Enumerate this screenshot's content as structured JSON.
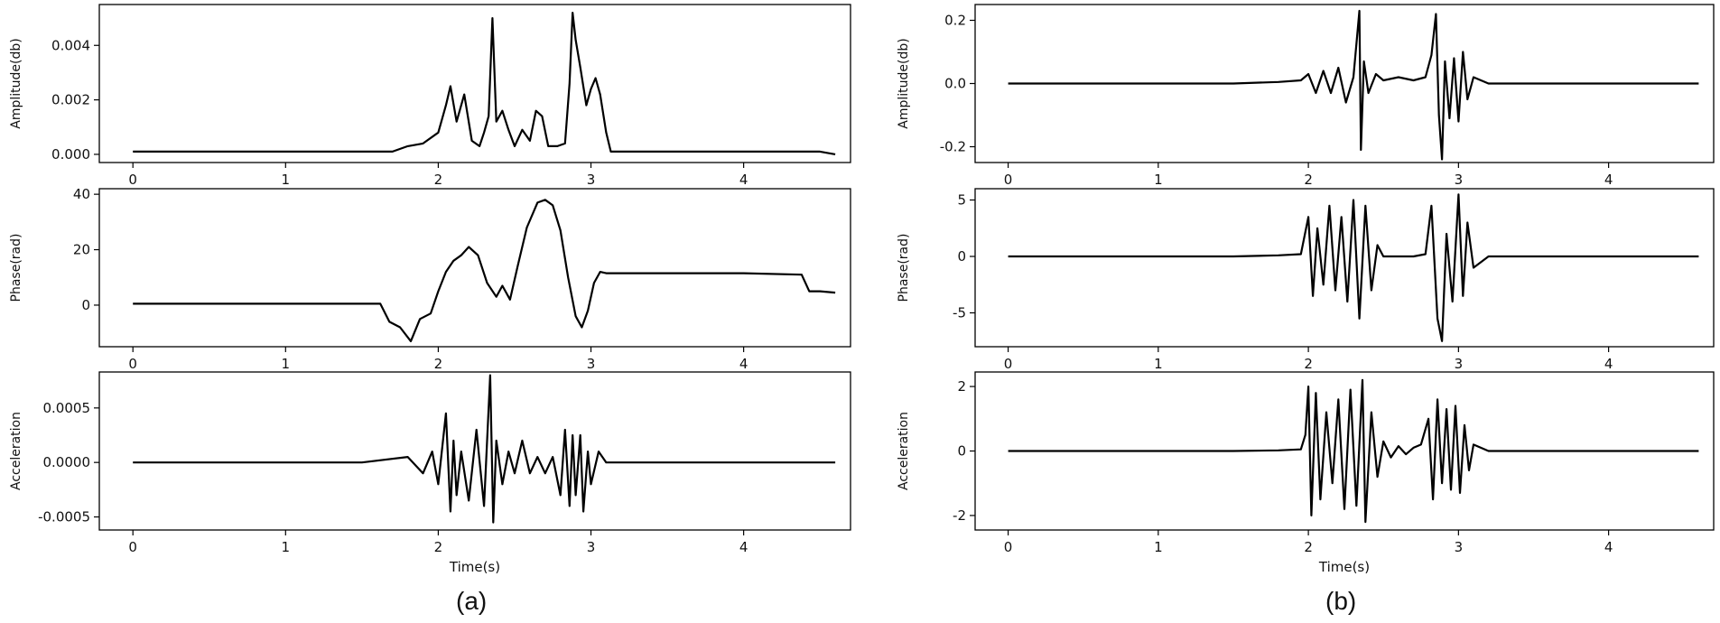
{
  "captions": {
    "a": "(a)",
    "b": "(b)"
  },
  "colors": {
    "line": "#000000",
    "axis": "#000000",
    "background": "#ffffff"
  },
  "chart_data": [
    {
      "type": "line",
      "panel": "a",
      "row": 0,
      "xlabel": "",
      "ylabel": "Amplitude(db)",
      "xlim": [
        -0.22,
        4.7
      ],
      "ylim": [
        -0.0003,
        0.0055
      ],
      "xticks": [
        "0",
        "1",
        "2",
        "3",
        "4"
      ],
      "yticks": [
        "0.000",
        "0.002",
        "0.004"
      ],
      "ytick_values": [
        0,
        0.002,
        0.004
      ],
      "series": [
        {
          "x": [
            0,
            0.5,
            1.0,
            1.5,
            1.7,
            1.8,
            1.9,
            2.0,
            2.05,
            2.08,
            2.12,
            2.17,
            2.22,
            2.27,
            2.3,
            2.33,
            2.355,
            2.38,
            2.42,
            2.46,
            2.5,
            2.55,
            2.6,
            2.64,
            2.68,
            2.72,
            2.78,
            2.83,
            2.86,
            2.88,
            2.9,
            2.93,
            2.97,
            3.0,
            3.03,
            3.06,
            3.1,
            3.13,
            3.5,
            4.0,
            4.5,
            4.6
          ],
          "y": [
            0.0001,
            0.0001,
            0.0001,
            0.0001,
            0.0001,
            0.0003,
            0.0004,
            0.0008,
            0.0018,
            0.0025,
            0.0012,
            0.0022,
            0.0005,
            0.0003,
            0.0008,
            0.0014,
            0.005,
            0.0012,
            0.0016,
            0.0009,
            0.0003,
            0.0009,
            0.0005,
            0.0016,
            0.0014,
            0.0003,
            0.0003,
            0.0004,
            0.0026,
            0.0052,
            0.0042,
            0.0032,
            0.0018,
            0.0024,
            0.0028,
            0.0022,
            0.0008,
            0.0001,
            0.0001,
            0.0001,
            0.0001,
            0.0
          ]
        }
      ]
    },
    {
      "type": "line",
      "panel": "a",
      "row": 1,
      "xlabel": "",
      "ylabel": "Phase(rad)",
      "xlim": [
        -0.22,
        4.7
      ],
      "ylim": [
        -15,
        42
      ],
      "xticks": [
        "0",
        "1",
        "2",
        "3",
        "4"
      ],
      "yticks": [
        "0",
        "20",
        "40"
      ],
      "ytick_values": [
        0,
        20,
        40
      ],
      "series": [
        {
          "x": [
            0,
            0.5,
            1.0,
            1.5,
            1.62,
            1.68,
            1.75,
            1.82,
            1.88,
            1.95,
            2.0,
            2.05,
            2.1,
            2.15,
            2.2,
            2.26,
            2.32,
            2.38,
            2.42,
            2.47,
            2.52,
            2.58,
            2.65,
            2.7,
            2.75,
            2.8,
            2.85,
            2.9,
            2.94,
            2.98,
            3.02,
            3.06,
            3.1,
            3.5,
            4.0,
            4.38,
            4.43,
            4.5,
            4.6
          ],
          "y": [
            0.5,
            0.5,
            0.5,
            0.5,
            0.5,
            -6,
            -8,
            -13,
            -5,
            -3,
            5,
            12,
            16,
            18,
            21,
            18,
            8,
            3,
            7,
            2,
            14,
            28,
            37,
            38,
            36,
            27,
            10,
            -4,
            -8,
            -2,
            8,
            12,
            11.5,
            11.5,
            11.5,
            11,
            5,
            5,
            4.5
          ]
        }
      ]
    },
    {
      "type": "line",
      "panel": "a",
      "row": 2,
      "xlabel": "Time(s)",
      "ylabel": "Acceleration",
      "xlim": [
        -0.22,
        4.7
      ],
      "ylim": [
        -0.00062,
        0.00083
      ],
      "xticks": [
        "0",
        "1",
        "2",
        "3",
        "4"
      ],
      "yticks": [
        "0.0005",
        "0.0000",
        "-0.0005"
      ],
      "ytick_values": [
        0.0005,
        0,
        -0.0005
      ],
      "series": [
        {
          "x": [
            0,
            0.5,
            1.0,
            1.5,
            1.8,
            1.9,
            1.96,
            2.0,
            2.05,
            2.08,
            2.1,
            2.12,
            2.15,
            2.2,
            2.25,
            2.3,
            2.34,
            2.36,
            2.38,
            2.42,
            2.46,
            2.5,
            2.55,
            2.6,
            2.65,
            2.7,
            2.75,
            2.8,
            2.83,
            2.86,
            2.88,
            2.9,
            2.93,
            2.95,
            2.98,
            3.0,
            3.05,
            3.1,
            3.5,
            4.0,
            4.5,
            4.6
          ],
          "y": [
            0,
            0,
            0,
            0,
            5e-05,
            -0.0001,
            0.0001,
            -0.0002,
            0.00045,
            -0.00045,
            0.0002,
            -0.0003,
            0.0001,
            -0.00035,
            0.0003,
            -0.0004,
            0.0008,
            -0.00055,
            0.0002,
            -0.0002,
            0.0001,
            -0.0001,
            0.0002,
            -0.0001,
            5e-05,
            -0.0001,
            5e-05,
            -0.0003,
            0.0003,
            -0.0004,
            0.00025,
            -0.0003,
            0.00025,
            -0.00045,
            0.0001,
            -0.0002,
            0.0001,
            0,
            0,
            0,
            0,
            0
          ]
        }
      ]
    },
    {
      "type": "line",
      "panel": "b",
      "row": 0,
      "xlabel": "",
      "ylabel": "Amplitude(db)",
      "xlim": [
        -0.22,
        4.7
      ],
      "ylim": [
        -0.25,
        0.25
      ],
      "xticks": [
        "0",
        "1",
        "2",
        "3",
        "4"
      ],
      "yticks": [
        "0.2",
        "0.0",
        "-0.2"
      ],
      "ytick_values": [
        0.2,
        0,
        -0.2
      ],
      "series": [
        {
          "x": [
            0,
            0.5,
            1.0,
            1.5,
            1.8,
            1.95,
            2.0,
            2.05,
            2.1,
            2.15,
            2.2,
            2.25,
            2.3,
            2.34,
            2.35,
            2.37,
            2.4,
            2.45,
            2.5,
            2.6,
            2.7,
            2.78,
            2.82,
            2.85,
            2.87,
            2.89,
            2.91,
            2.94,
            2.97,
            3.0,
            3.03,
            3.06,
            3.1,
            3.2,
            3.5,
            4.0,
            4.5,
            4.6
          ],
          "y": [
            0,
            0,
            0,
            0,
            0.005,
            0.01,
            0.03,
            -0.03,
            0.04,
            -0.03,
            0.05,
            -0.06,
            0.02,
            0.23,
            -0.21,
            0.07,
            -0.03,
            0.03,
            0.01,
            0.02,
            0.01,
            0.02,
            0.09,
            0.22,
            -0.1,
            -0.24,
            0.07,
            -0.11,
            0.08,
            -0.12,
            0.1,
            -0.05,
            0.02,
            0,
            0,
            0,
            0,
            0
          ]
        }
      ]
    },
    {
      "type": "line",
      "panel": "b",
      "row": 1,
      "xlabel": "",
      "ylabel": "Phase(rad)",
      "xlim": [
        -0.22,
        4.7
      ],
      "ylim": [
        -8,
        6
      ],
      "xticks": [
        "0",
        "1",
        "2",
        "3",
        "4"
      ],
      "yticks": [
        "5",
        "0",
        "-5"
      ],
      "ytick_values": [
        5,
        0,
        -5
      ],
      "series": [
        {
          "x": [
            0,
            0.5,
            1.0,
            1.5,
            1.8,
            1.95,
            2.0,
            2.03,
            2.06,
            2.1,
            2.14,
            2.18,
            2.22,
            2.26,
            2.3,
            2.34,
            2.38,
            2.42,
            2.46,
            2.5,
            2.6,
            2.7,
            2.78,
            2.82,
            2.86,
            2.89,
            2.92,
            2.96,
            3.0,
            3.03,
            3.06,
            3.1,
            3.2,
            3.5,
            4.0,
            4.5,
            4.6
          ],
          "y": [
            0,
            0,
            0,
            0,
            0.1,
            0.2,
            3.5,
            -3.5,
            2.5,
            -2.5,
            4.5,
            -3,
            3.5,
            -4,
            5,
            -5.5,
            4.5,
            -3,
            1,
            0,
            0,
            0,
            0.2,
            4.5,
            -5.5,
            -7.5,
            2,
            -4,
            5.5,
            -3.5,
            3,
            -1,
            0,
            0,
            0,
            0,
            0
          ]
        }
      ]
    },
    {
      "type": "line",
      "panel": "b",
      "row": 2,
      "xlabel": "Time(s)",
      "ylabel": "Acceleration",
      "xlim": [
        -0.22,
        4.7
      ],
      "ylim": [
        -2.45,
        2.45
      ],
      "xticks": [
        "0",
        "1",
        "2",
        "3",
        "4"
      ],
      "yticks": [
        "2",
        "0",
        "-2"
      ],
      "ytick_values": [
        2,
        0,
        -2
      ],
      "series": [
        {
          "x": [
            0,
            0.5,
            1.0,
            1.5,
            1.8,
            1.95,
            1.98,
            2.0,
            2.02,
            2.05,
            2.08,
            2.12,
            2.16,
            2.2,
            2.24,
            2.28,
            2.32,
            2.36,
            2.38,
            2.42,
            2.46,
            2.5,
            2.55,
            2.6,
            2.65,
            2.7,
            2.75,
            2.8,
            2.83,
            2.86,
            2.89,
            2.92,
            2.95,
            2.98,
            3.01,
            3.04,
            3.07,
            3.1,
            3.2,
            3.5,
            4.0,
            4.5,
            4.6
          ],
          "y": [
            0,
            0,
            0,
            0,
            0.02,
            0.05,
            0.5,
            2.0,
            -2.0,
            1.8,
            -1.5,
            1.2,
            -1.0,
            1.6,
            -1.8,
            1.9,
            -1.7,
            2.2,
            -2.2,
            1.2,
            -0.8,
            0.3,
            -0.2,
            0.15,
            -0.1,
            0.1,
            0.2,
            1.0,
            -1.5,
            1.6,
            -1.0,
            1.3,
            -1.2,
            1.4,
            -1.3,
            0.8,
            -0.6,
            0.2,
            0,
            0,
            0,
            0,
            0
          ]
        }
      ]
    }
  ]
}
